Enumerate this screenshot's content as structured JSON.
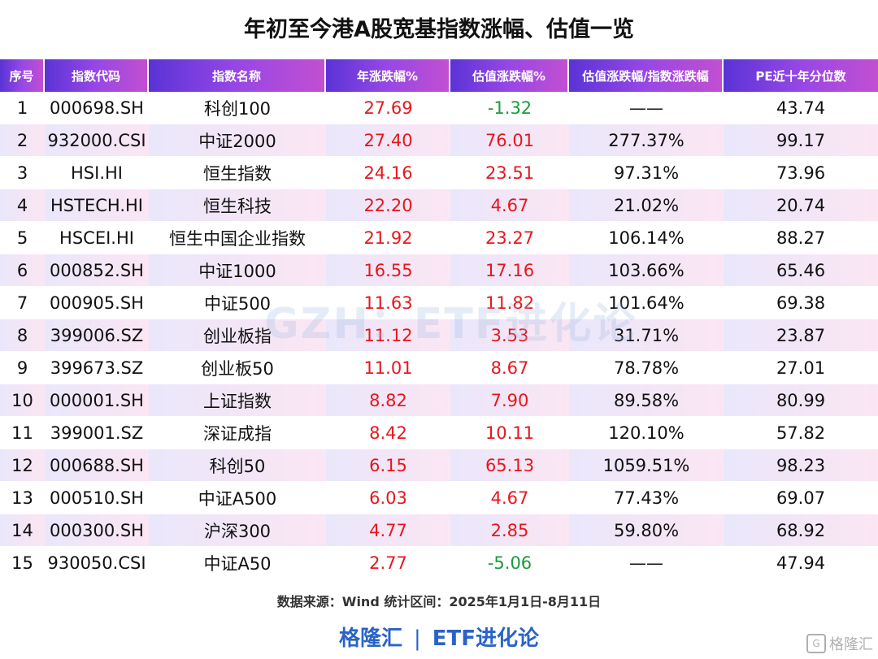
{
  "title": "年初至今港A股宽基指数涨幅、估值一览",
  "headers": [
    "序号",
    "指数代码",
    "指数名称",
    "年涨跌幅%",
    "估值涨跌幅%",
    "估值涨跌幅/指数涨跌幅",
    "PE近十年分位数"
  ],
  "rows": [
    {
      "no": "1",
      "code": "000698.SH",
      "name": "科创100",
      "year_change": "27.69",
      "val_change": "-1.32",
      "ratio": "——",
      "pe_pct": "43.74"
    },
    {
      "no": "2",
      "code": "932000.CSI",
      "name": "中证2000",
      "year_change": "27.40",
      "val_change": "76.01",
      "ratio": "277.37%",
      "pe_pct": "99.17"
    },
    {
      "no": "3",
      "code": "HSI.HI",
      "name": "恒生指数",
      "year_change": "24.16",
      "val_change": "23.51",
      "ratio": "97.31%",
      "pe_pct": "73.96"
    },
    {
      "no": "4",
      "code": "HSTECH.HI",
      "name": "恒生科技",
      "year_change": "22.20",
      "val_change": "4.67",
      "ratio": "21.02%",
      "pe_pct": "20.74"
    },
    {
      "no": "5",
      "code": "HSCEI.HI",
      "name": "恒生中国企业指数",
      "year_change": "21.92",
      "val_change": "23.27",
      "ratio": "106.14%",
      "pe_pct": "88.27"
    },
    {
      "no": "6",
      "code": "000852.SH",
      "name": "中证1000",
      "year_change": "16.55",
      "val_change": "17.16",
      "ratio": "103.66%",
      "pe_pct": "65.46"
    },
    {
      "no": "7",
      "code": "000905.SH",
      "name": "中证500",
      "year_change": "11.63",
      "val_change": "11.82",
      "ratio": "101.64%",
      "pe_pct": "69.38"
    },
    {
      "no": "8",
      "code": "399006.SZ",
      "name": "创业板指",
      "year_change": "11.12",
      "val_change": "3.53",
      "ratio": "31.71%",
      "pe_pct": "23.87"
    },
    {
      "no": "9",
      "code": "399673.SZ",
      "name": "创业板50",
      "year_change": "11.01",
      "val_change": "8.67",
      "ratio": "78.78%",
      "pe_pct": "27.01"
    },
    {
      "no": "10",
      "code": "000001.SH",
      "name": "上证指数",
      "year_change": "8.82",
      "val_change": "7.90",
      "ratio": "89.58%",
      "pe_pct": "80.99"
    },
    {
      "no": "11",
      "code": "399001.SZ",
      "name": "深证成指",
      "year_change": "8.42",
      "val_change": "10.11",
      "ratio": "120.10%",
      "pe_pct": "57.82"
    },
    {
      "no": "12",
      "code": "000688.SH",
      "name": "科创50",
      "year_change": "6.15",
      "val_change": "65.13",
      "ratio": "1059.51%",
      "pe_pct": "98.23"
    },
    {
      "no": "13",
      "code": "000510.SH",
      "name": "中证A500",
      "year_change": "6.03",
      "val_change": "4.67",
      "ratio": "77.43%",
      "pe_pct": "69.07"
    },
    {
      "no": "14",
      "code": "000300.SH",
      "name": "沪深300",
      "year_change": "4.77",
      "val_change": "2.85",
      "ratio": "59.80%",
      "pe_pct": "68.92"
    },
    {
      "no": "15",
      "code": "930050.CSI",
      "name": "中证A50",
      "year_change": "2.77",
      "val_change": "-5.06",
      "ratio": "——",
      "pe_pct": "47.94"
    }
  ],
  "watermark": "GZH：ETF进化论",
  "source": "数据来源：Wind 统计区间：2025年1月1日-8月11日",
  "brand": {
    "left": "格隆汇",
    "sep": "|",
    "right": "ETF进化论"
  },
  "corner_logo": {
    "icon": "gelonghui-logo-icon",
    "text": "格隆汇"
  },
  "colors": {
    "positive": "#e8161c",
    "negative": "#1a9a3a",
    "header_start": "#5a33d6",
    "header_end": "#c24fd1",
    "brand": "#2a63c9"
  }
}
